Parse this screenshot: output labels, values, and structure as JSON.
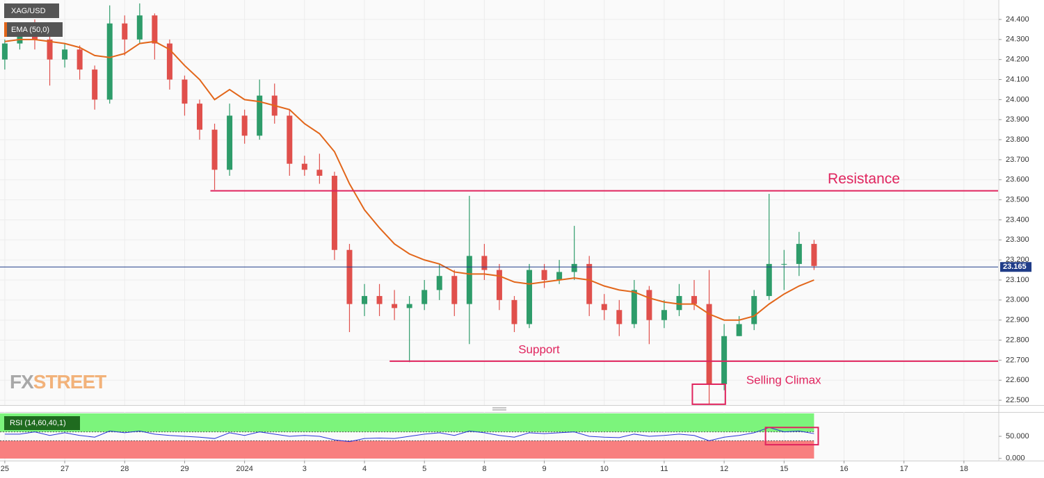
{
  "chart_data": [
    {
      "type": "candlestick",
      "symbol": "XAG/USD",
      "up_color": "#2e9c6a",
      "down_color": "#e0504c",
      "x": [
        0,
        0.25,
        0.5,
        0.75,
        1,
        1.25,
        1.5,
        1.75,
        2,
        2.25,
        2.5,
        2.75,
        3,
        3.25,
        3.5,
        3.75,
        4,
        4.25,
        4.5,
        4.75,
        5,
        5.25,
        5.5,
        5.75,
        6,
        6.25,
        6.5,
        6.75,
        7,
        7.25,
        7.5,
        7.75,
        8,
        8.25,
        8.5,
        8.75,
        9,
        9.25,
        9.5,
        9.75,
        10,
        10.25,
        10.5,
        10.75,
        11,
        11.25,
        11.5,
        11.75,
        12,
        12.25,
        12.5,
        12.75,
        13,
        13.25,
        13.5
      ],
      "open": [
        24.2,
        24.28,
        24.33,
        24.3,
        24.2,
        24.25,
        24.15,
        24.0,
        24.38,
        24.3,
        24.42,
        24.28,
        24.1,
        23.98,
        23.85,
        23.65,
        23.92,
        23.82,
        24.02,
        23.92,
        23.68,
        23.65,
        23.62,
        23.25,
        22.98,
        23.02,
        22.98,
        22.96,
        22.98,
        23.05,
        23.12,
        22.98,
        23.22,
        23.15,
        23.0,
        22.88,
        23.15,
        23.1,
        23.14,
        23.18,
        22.98,
        22.95,
        22.88,
        23.05,
        22.9,
        22.95,
        23.02,
        22.98,
        22.58,
        22.82,
        22.88,
        23.02,
        23.18,
        23.18,
        23.28
      ],
      "high": [
        24.3,
        24.38,
        24.4,
        24.33,
        24.28,
        24.27,
        24.17,
        24.47,
        24.42,
        24.48,
        24.43,
        24.3,
        24.12,
        24.0,
        23.88,
        23.98,
        23.95,
        24.1,
        24.08,
        23.95,
        23.72,
        23.73,
        23.64,
        23.28,
        23.08,
        23.08,
        23.05,
        23.02,
        23.1,
        23.18,
        23.15,
        23.52,
        23.28,
        23.18,
        23.02,
        23.18,
        23.18,
        23.2,
        23.37,
        23.22,
        23.03,
        23.0,
        23.1,
        23.07,
        23.0,
        23.08,
        23.1,
        23.15,
        22.88,
        22.92,
        23.05,
        23.53,
        23.25,
        23.34,
        23.3
      ],
      "low": [
        24.15,
        24.25,
        24.25,
        24.07,
        24.16,
        24.1,
        23.95,
        23.98,
        24.22,
        24.28,
        24.2,
        24.05,
        23.92,
        23.8,
        23.55,
        23.62,
        23.78,
        23.8,
        23.88,
        23.62,
        23.62,
        23.58,
        23.2,
        22.84,
        22.92,
        22.92,
        22.9,
        22.69,
        22.95,
        23.0,
        22.92,
        22.78,
        23.1,
        22.95,
        22.84,
        22.86,
        23.06,
        23.08,
        23.1,
        22.92,
        22.9,
        22.82,
        22.86,
        22.78,
        22.86,
        22.92,
        22.95,
        22.48,
        22.55,
        22.82,
        22.85,
        23.0,
        23.05,
        23.12,
        23.15
      ],
      "close": [
        24.28,
        24.33,
        24.3,
        24.2,
        24.25,
        24.15,
        24.0,
        24.38,
        24.3,
        24.42,
        24.28,
        24.1,
        23.98,
        23.85,
        23.65,
        23.92,
        23.82,
        24.02,
        23.92,
        23.68,
        23.65,
        23.62,
        23.25,
        22.98,
        23.02,
        22.98,
        22.96,
        22.98,
        23.05,
        23.12,
        22.98,
        23.22,
        23.15,
        23.0,
        22.88,
        23.15,
        23.1,
        23.14,
        23.18,
        22.98,
        22.95,
        22.88,
        23.05,
        22.9,
        22.95,
        23.02,
        22.98,
        22.58,
        22.82,
        22.88,
        23.02,
        23.18,
        23.18,
        23.28,
        23.17
      ],
      "indicator": {
        "name": "EMA (50,0)",
        "color": "#e2661a",
        "values": [
          24.29,
          24.3,
          24.3,
          24.29,
          24.28,
          24.26,
          24.22,
          24.21,
          24.23,
          24.28,
          24.29,
          24.25,
          24.17,
          24.1,
          24.0,
          24.05,
          24.0,
          23.99,
          23.97,
          23.95,
          23.88,
          23.83,
          23.74,
          23.58,
          23.45,
          23.36,
          23.28,
          23.23,
          23.2,
          23.18,
          23.14,
          23.13,
          23.13,
          23.12,
          23.09,
          23.08,
          23.09,
          23.1,
          23.11,
          23.1,
          23.07,
          23.05,
          23.04,
          23.01,
          22.99,
          22.98,
          22.98,
          22.93,
          22.9,
          22.9,
          22.92,
          22.98,
          23.03,
          23.07,
          23.1
        ]
      },
      "xlim": [
        -0.08,
        16.57
      ],
      "xticks": [
        {
          "value": 0,
          "label": "25"
        },
        {
          "value": 1,
          "label": "27"
        },
        {
          "value": 2,
          "label": "28"
        },
        {
          "value": 3,
          "label": "29"
        },
        {
          "value": 4,
          "label": "2024"
        },
        {
          "value": 5,
          "label": "3"
        },
        {
          "value": 6,
          "label": "4"
        },
        {
          "value": 7,
          "label": "5"
        },
        {
          "value": 8,
          "label": "8"
        },
        {
          "value": 9,
          "label": "9"
        },
        {
          "value": 10,
          "label": "10"
        },
        {
          "value": 11,
          "label": "11"
        },
        {
          "value": 12,
          "label": "12"
        },
        {
          "value": 13,
          "label": "15"
        },
        {
          "value": 14,
          "label": "16"
        },
        {
          "value": 15,
          "label": "17"
        },
        {
          "value": 16,
          "label": "18"
        }
      ],
      "ylim": [
        22.476,
        24.497
      ],
      "yticks": [
        {
          "value": 22.5,
          "label": "22.500"
        },
        {
          "value": 22.6,
          "label": "22.600"
        },
        {
          "value": 22.7,
          "label": "22.700"
        },
        {
          "value": 22.8,
          "label": "22.800"
        },
        {
          "value": 22.9,
          "label": "22.900"
        },
        {
          "value": 23.0,
          "label": "23.000"
        },
        {
          "value": 23.1,
          "label": "23.100"
        },
        {
          "value": 23.2,
          "label": "23.200"
        },
        {
          "value": 23.3,
          "label": "23.300"
        },
        {
          "value": 23.4,
          "label": "23.400"
        },
        {
          "value": 23.5,
          "label": "23.500"
        },
        {
          "value": 23.6,
          "label": "23.600"
        },
        {
          "value": 23.7,
          "label": "23.700"
        },
        {
          "value": 23.8,
          "label": "23.800"
        },
        {
          "value": 23.9,
          "label": "23.900"
        },
        {
          "value": 24.0,
          "label": "24.000"
        },
        {
          "value": 24.1,
          "label": "24.100"
        },
        {
          "value": 24.2,
          "label": "24.200"
        },
        {
          "value": 24.3,
          "label": "24.300"
        },
        {
          "value": 24.4,
          "label": "24.400"
        }
      ],
      "grid": true,
      "levels": [
        {
          "name": "Resistance",
          "value": 23.545,
          "x_start": 3.43,
          "color": "#e0245e"
        },
        {
          "name": "Support",
          "value": 22.695,
          "x_start": 6.42,
          "color": "#e0245e"
        }
      ],
      "last_price": {
        "value": 23.165,
        "label": "23.165",
        "color": "#1f3c88"
      },
      "boxes": [
        {
          "label": "Selling Climax",
          "x": [
            11.47,
            12.02
          ],
          "y": [
            22.48,
            22.58
          ],
          "color": "#e0245e"
        }
      ],
      "watermark": [
        "FX",
        "STREET"
      ]
    },
    {
      "type": "line",
      "name": "RSI (14,60,40,1)",
      "color": "#2733d8",
      "values": [
        55,
        55,
        60,
        52,
        58,
        52,
        48,
        62,
        58,
        62,
        55,
        52,
        50,
        48,
        45,
        58,
        52,
        60,
        55,
        50,
        52,
        50,
        42,
        38,
        45,
        46,
        45,
        50,
        55,
        58,
        52,
        62,
        58,
        52,
        48,
        58,
        56,
        58,
        60,
        50,
        48,
        47,
        55,
        50,
        52,
        55,
        52,
        40,
        48,
        52,
        58,
        70,
        60,
        62,
        56
      ],
      "upper": 60,
      "lower": 40,
      "ylim": [
        -5,
        105
      ],
      "yticks": [
        {
          "value": 0,
          "label": "0.000"
        },
        {
          "value": 50,
          "label": "50.000"
        }
      ],
      "boxes": [
        {
          "x": [
            12.69,
            13.57
          ],
          "y": [
            31,
            70
          ],
          "color": "#e0245e"
        }
      ]
    }
  ]
}
